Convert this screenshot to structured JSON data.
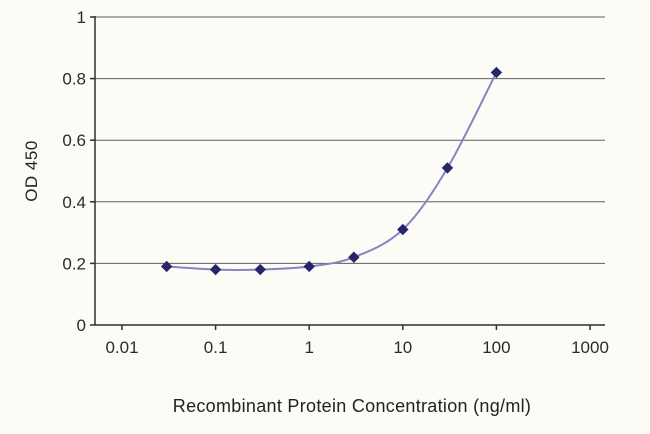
{
  "figure": {
    "background": "#fcfbf6"
  },
  "chart_data": {
    "type": "line",
    "title": "",
    "xlabel": "Recombinant Protein Concentration (ng/ml)",
    "ylabel": "OD 450",
    "x_scale": "log",
    "xlim": [
      0.01,
      1000
    ],
    "ylim": [
      0,
      1
    ],
    "x": [
      0.03,
      0.1,
      0.3,
      1,
      3,
      10,
      30,
      100
    ],
    "y": [
      0.19,
      0.18,
      0.18,
      0.19,
      0.22,
      0.31,
      0.51,
      0.82
    ],
    "xticks": [
      {
        "value": 0.01,
        "label": "0.01"
      },
      {
        "value": 0.1,
        "label": "0.1"
      },
      {
        "value": 1,
        "label": "1"
      },
      {
        "value": 10,
        "label": "10"
      },
      {
        "value": 100,
        "label": "100"
      },
      {
        "value": 1000,
        "label": "1000"
      }
    ],
    "yticks": [
      {
        "value": 0,
        "label": "0"
      },
      {
        "value": 0.2,
        "label": "0.2"
      },
      {
        "value": 0.4,
        "label": "0.4"
      },
      {
        "value": 0.6,
        "label": "0.6"
      },
      {
        "value": 0.8,
        "label": "0.8"
      },
      {
        "value": 1,
        "label": "1"
      }
    ],
    "grid": "horizontal",
    "legend": "none",
    "marker": "diamond",
    "line_style": "smooth",
    "colors": {
      "line": "#8585c0",
      "marker": "#26266a",
      "grid": "#5f5f5f",
      "axis": "#2e2e2e",
      "text": "#2b2b2b"
    }
  }
}
